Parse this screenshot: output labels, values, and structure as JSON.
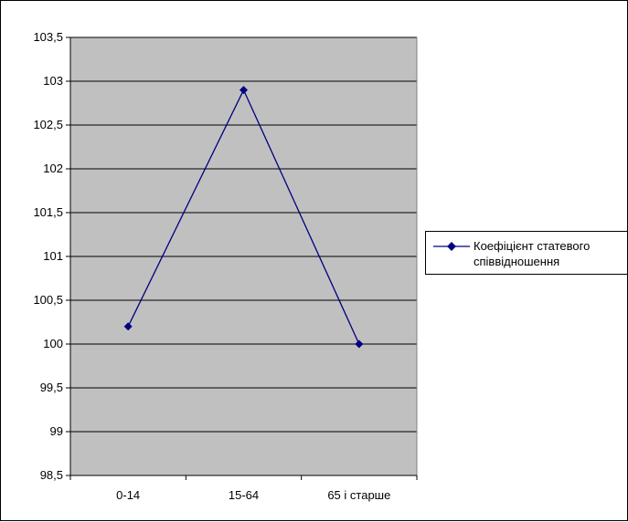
{
  "chart_data": {
    "type": "line",
    "categories": [
      "0-14",
      "15-64",
      "65 і старше"
    ],
    "series": [
      {
        "name": "Коефіцієнт статевого співвідношення",
        "values": [
          100.2,
          102.9,
          100.0
        ]
      }
    ],
    "y_ticks": [
      "98,5",
      "99",
      "99,5",
      "100",
      "100,5",
      "101",
      "101,5",
      "102",
      "102,5",
      "103",
      "103,5"
    ],
    "ylim": [
      98.5,
      103.5
    ],
    "y_step": 0.5,
    "grid": true,
    "legend_position": "right",
    "colors": {
      "series": "#000080",
      "plot_area": "#c0c0c0",
      "gridlines": "#000000"
    }
  }
}
